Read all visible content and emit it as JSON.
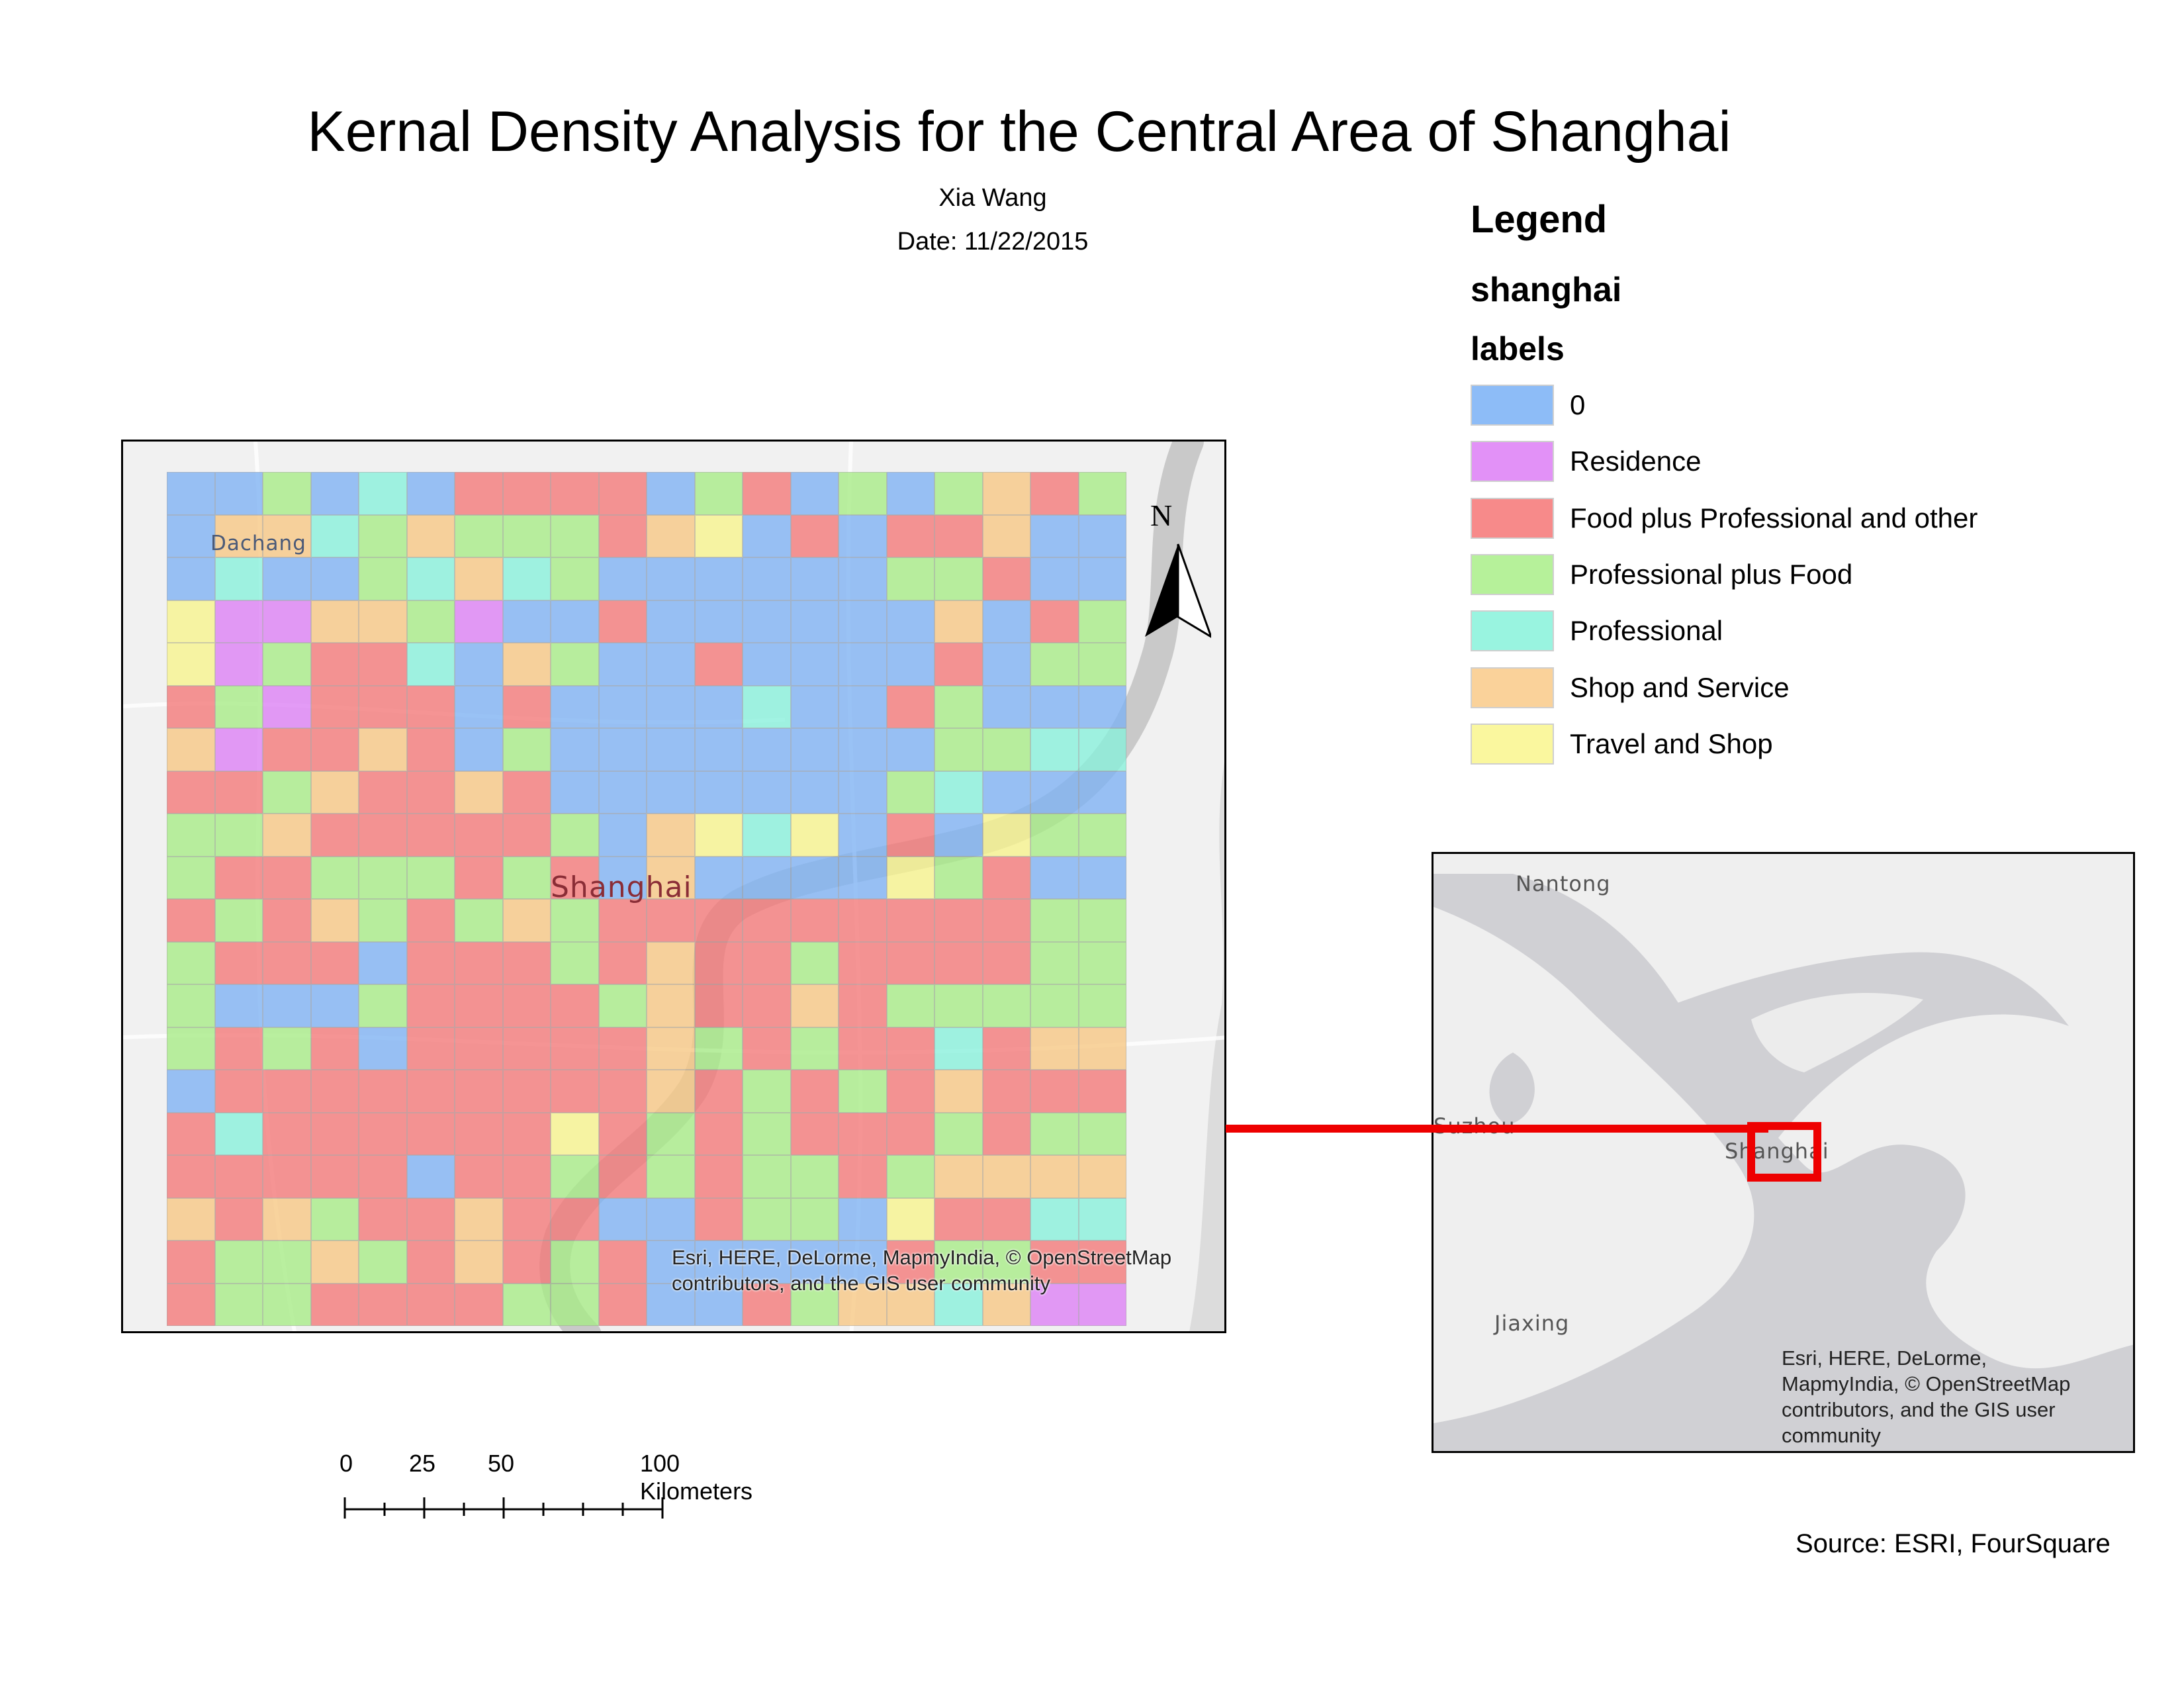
{
  "title": "Kernal Density Analysis for the Central Area of Shanghai",
  "author": "Xia Wang",
  "date": "Date: 11/22/2015",
  "colors": {
    "blue": "#7eb2f4",
    "purple": "#dd80f5",
    "red": "#f47878",
    "green": "#a7ec86",
    "cyan": "#88f1dc",
    "orange": "#f8c883",
    "yellow": "#f8f48c"
  },
  "legend": {
    "title": "Legend",
    "layer": "shanghai",
    "field": "labels",
    "items": [
      {
        "label": "0",
        "color": "#8dbcf7"
      },
      {
        "label": "Residence",
        "color": "#e291f7"
      },
      {
        "label": "Food plus Professional and other",
        "color": "#f78a8a"
      },
      {
        "label": "Professional plus Food",
        "color": "#b6f19a"
      },
      {
        "label": "Professional",
        "color": "#99f4e0"
      },
      {
        "label": "Shop and Service",
        "color": "#fad29a"
      },
      {
        "label": "Travel and Shop",
        "color": "#faf79e"
      }
    ]
  },
  "main_map": {
    "place_labels": {
      "dachang": "Dachang",
      "shanghai": "Shanghai"
    },
    "north_label": "N",
    "credit_line1": "Esri, HERE, DeLorme, MapmyIndia, © OpenStreetMap",
    "credit_line2": "contributors, and the GIS user community",
    "grid_codes": [
      "BBGBCBRRRRBGRBGBGORG",
      "BOOCGOGGGROYBRBRROB",
      "BCBBGCOCGBBBBBBGGRB",
      "YPPOOGPBBRBBBBBBOBRG",
      "YPGRRCBOGBBRBBBBRBG",
      "RGPRRRBRBBBBCBBRGBB",
      "OPRRORBGBBBBBBBBGGC",
      "RRGORRORBBBBBBBGCBB",
      "GGORRRRRGBOYCYBRBYG",
      "GRRGGGRGRBOBBBBYGRB",
      "RGROGRGOGRRRRRRRRRG",
      "GRRRBRRRGRORRGRRRRG",
      "GBBBGRRRRGORRORGGGG",
      "GRGRBRRRRROGRGRRCRO",
      "BRRRRRRRRRORGRGRORR",
      "RCRRRRRRYRGRGRRRGRG",
      "RRRRRBRRGRGRGGRGOOO",
      "OROGRRORRBBRGGBYRRC",
      "RGGOGRORGRBBBBBRGGR",
      "RGGRRRRGGRBBRGOOCOP"
    ]
  },
  "inset_map": {
    "labels": {
      "nantong": "Nantong",
      "suzhou": "Suzhou",
      "shanghai": "Shanghai",
      "jiaxing": "Jiaxing"
    },
    "credit_lines": [
      "Esri, HERE, DeLorme,",
      "MapmyIndia, © OpenStreetMap",
      "contributors, and the GIS user",
      "community"
    ]
  },
  "scalebar": {
    "labels": [
      "0",
      "25",
      "50",
      "100 Kilometers"
    ]
  },
  "source": "Source: ESRI, FourSquare"
}
